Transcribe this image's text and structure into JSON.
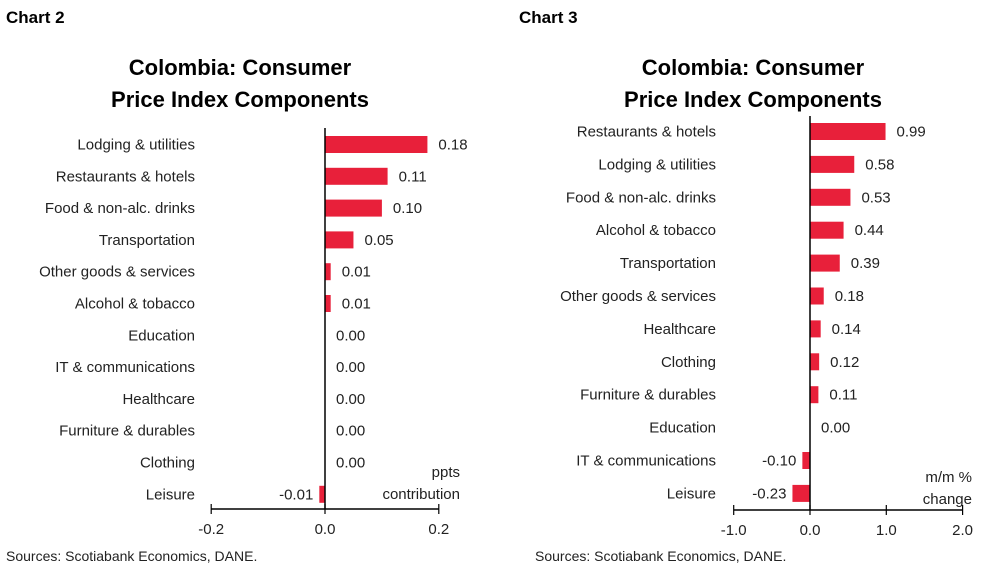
{
  "colors": {
    "bar": "#e8203a",
    "axis": "#000000",
    "text": "#222222"
  },
  "chart_data": [
    {
      "type": "bar",
      "orientation": "horizontal",
      "label": "Chart 2",
      "title_line1": "Colombia: Consumer",
      "title_line2": "Price Index Components",
      "categories": [
        "Lodging & utilities",
        "Restaurants & hotels",
        "Food & non-alc. drinks",
        "Transportation",
        "Other goods & services",
        "Alcohol & tobacco",
        "Education",
        "IT & communications",
        "Healthcare",
        "Furniture & durables",
        "Clothing",
        "Leisure"
      ],
      "values": [
        0.18,
        0.11,
        0.1,
        0.05,
        0.01,
        0.01,
        0.0,
        0.0,
        0.0,
        0.0,
        0.0,
        -0.01
      ],
      "value_labels": [
        "0.18",
        "0.11",
        "0.10",
        "0.05",
        "0.01",
        "0.01",
        "0.00",
        "0.00",
        "0.00",
        "0.00",
        "0.00",
        "-0.01"
      ],
      "xlim": [
        -0.2,
        0.2
      ],
      "xticks": [
        "-0.2",
        "0.0",
        "0.2"
      ],
      "unit_line1": "ppts",
      "unit_line2": "contribution",
      "source": "Sources: Scotiabank Economics, DANE."
    },
    {
      "type": "bar",
      "orientation": "horizontal",
      "label": "Chart 3",
      "title_line1": "Colombia: Consumer",
      "title_line2": "Price Index Components",
      "categories": [
        "Restaurants & hotels",
        "Lodging & utilities",
        "Food & non-alc. drinks",
        "Alcohol & tobacco",
        "Transportation",
        "Other goods & services",
        "Healthcare",
        "Clothing",
        "Furniture & durables",
        "Education",
        "IT & communications",
        "Leisure"
      ],
      "values": [
        0.99,
        0.58,
        0.53,
        0.44,
        0.39,
        0.18,
        0.14,
        0.12,
        0.11,
        0.0,
        -0.1,
        -0.23
      ],
      "value_labels": [
        "0.99",
        "0.58",
        "0.53",
        "0.44",
        "0.39",
        "0.18",
        "0.14",
        "0.12",
        "0.11",
        "0.00",
        "-0.10",
        "-0.23"
      ],
      "xlim": [
        -1.0,
        2.0
      ],
      "xticks": [
        "-1.0",
        "0.0",
        "1.0",
        "2.0"
      ],
      "unit_line1": "m/m %",
      "unit_line2": "change",
      "source": "Sources: Scotiabank Economics, DANE."
    }
  ]
}
